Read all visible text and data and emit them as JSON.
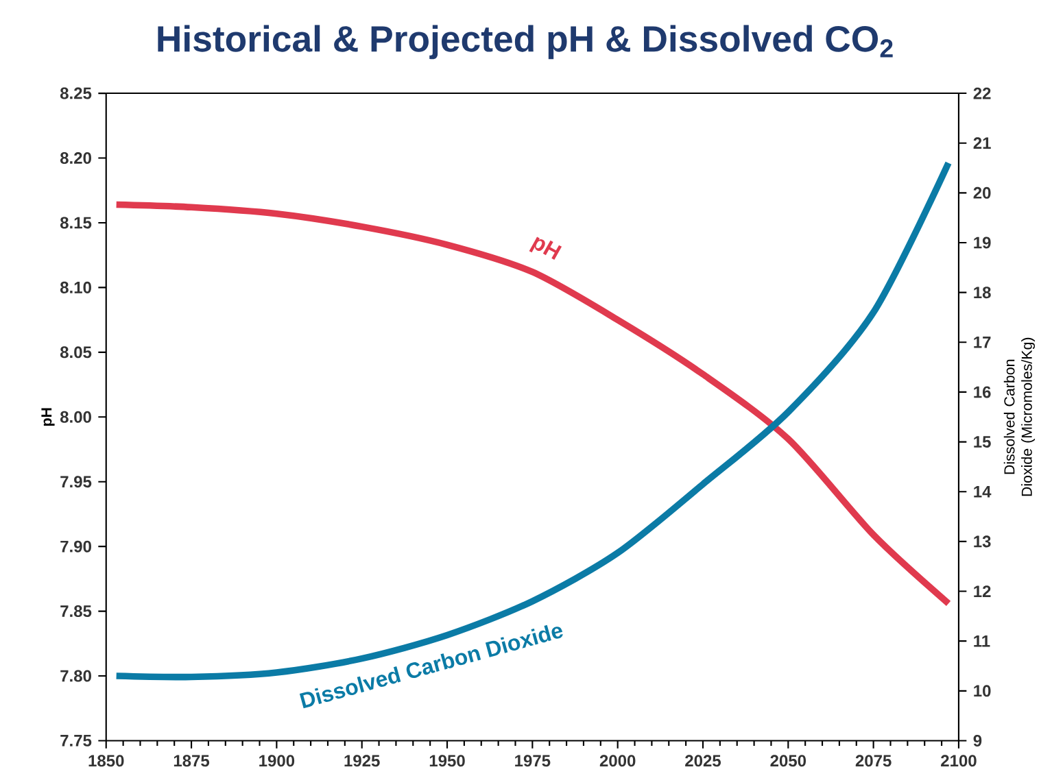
{
  "chart_data": {
    "type": "line",
    "title": "Historical & Projected pH & Dissolved CO$_{2}$",
    "ylabel": "pH",
    "y2label": "Dissolved Carbon Dioxide (Micromoles/Kg)",
    "x": [
      1853,
      1875,
      1900,
      1925,
      1950,
      1975,
      2000,
      2025,
      2050,
      2075,
      2097
    ],
    "series": [
      {
        "name": "pH",
        "color": "#e03a4e",
        "values": [
          8.164,
          8.162,
          8.157,
          8.147,
          8.133,
          8.112,
          8.075,
          8.033,
          7.983,
          7.909,
          7.856
        ]
      },
      {
        "name": "Dissolved Carbon Dioxide",
        "color": "#0b7ba6",
        "axis": "y2",
        "values": [
          10.3,
          10.28,
          10.37,
          10.65,
          11.12,
          11.8,
          12.77,
          14.15,
          15.6,
          17.6,
          20.6
        ]
      }
    ],
    "xlim": [
      1850,
      2100
    ],
    "xticks": [
      1850,
      1875,
      1900,
      1925,
      1950,
      1975,
      2000,
      2025,
      2050,
      2075,
      2100
    ],
    "ylim": [
      7.75,
      8.25
    ],
    "yticks": [
      7.75,
      {
        "value": 7.8,
        "label": "7.80"
      },
      7.85,
      {
        "value": 7.9,
        "label": "7.90"
      },
      7.95,
      {
        "value": 8.0,
        "label": "8.00"
      },
      8.05,
      {
        "value": 8.1,
        "label": "8.10"
      },
      8.15,
      {
        "value": 8.2,
        "label": "8.20"
      },
      8.25
    ],
    "y2lim": [
      9,
      22
    ],
    "y2ticks": [
      9,
      10,
      11,
      12,
      13,
      14,
      15,
      16,
      17,
      18,
      19,
      20,
      21,
      22
    ]
  }
}
